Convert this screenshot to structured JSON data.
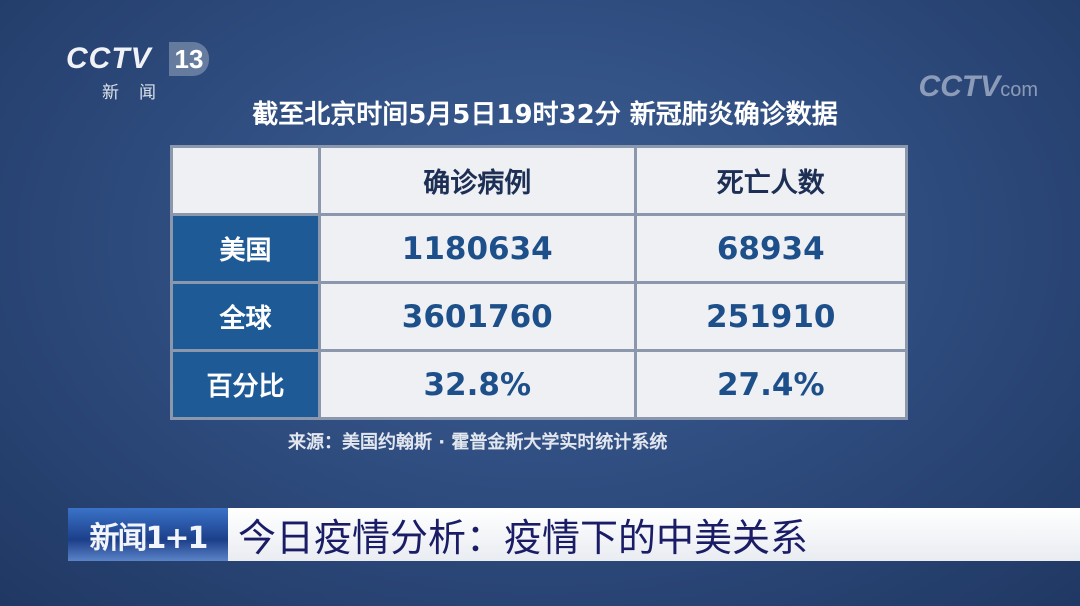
{
  "channel_logo": {
    "brand": "CCTV",
    "channel": "13",
    "subtitle": "新闻"
  },
  "watermark": {
    "brand": "CCTV",
    "suffix": "com"
  },
  "title": "截至北京时间5月5日19时32分 新冠肺炎确诊数据",
  "table": {
    "headers": [
      "",
      "确诊病例",
      "死亡人数"
    ],
    "rows": [
      {
        "label": "美国",
        "confirmed": "1180634",
        "deaths": "68934"
      },
      {
        "label": "全球",
        "confirmed": "3601760",
        "deaths": "251910"
      },
      {
        "label": "百分比",
        "confirmed": "32.8%",
        "deaths": "27.4%"
      }
    ]
  },
  "source": "来源：美国约翰斯 · 霍普金斯大学实时统计系统",
  "lower_third": {
    "program": "新闻1+1",
    "headline": "今日疫情分析：疫情下的中美关系"
  },
  "colors": {
    "row_header": "#1e5a95",
    "value_text": "#1d4f8a",
    "headline_text": "#1a1d66"
  }
}
